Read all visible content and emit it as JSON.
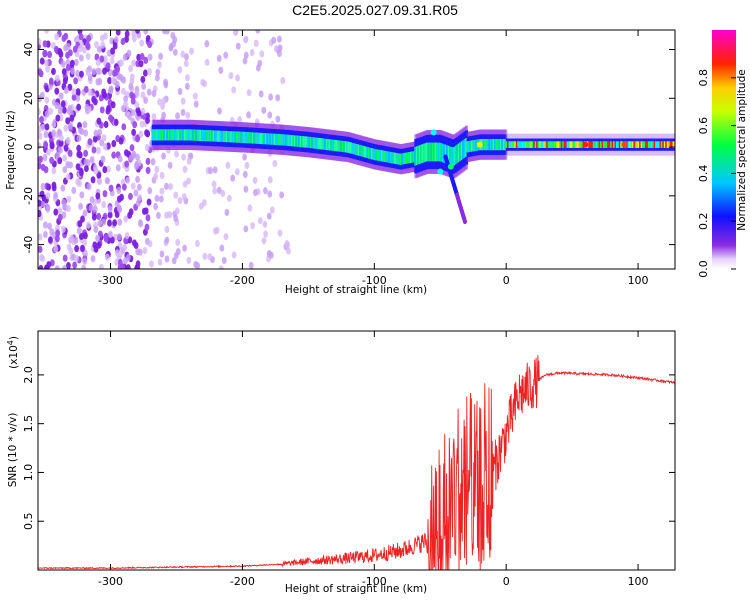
{
  "title": "C2E5.2025.027.09.31.R05",
  "chart_data": [
    {
      "type": "heatmap",
      "title": "C2E5.2025.027.09.31.R05",
      "xlabel": "Height of straight line (km)",
      "ylabel": "Frequency (Hz)",
      "xlim": [
        -355,
        128
      ],
      "ylim": [
        -50,
        48
      ],
      "xticks": [
        -300,
        -200,
        -100,
        0,
        100
      ],
      "yticks": [
        -40,
        -20,
        0,
        20,
        40
      ],
      "xtick_labels": [
        "-300",
        "-200",
        "-100",
        "0",
        "100"
      ],
      "ytick_labels": [
        "-40",
        "-20",
        "0",
        "20",
        "40"
      ],
      "colorbar": {
        "label": "Normalized spectral amplitude",
        "range": [
          0,
          1
        ],
        "ticks": [
          0.0,
          0.2,
          0.4,
          0.6,
          0.8
        ],
        "tick_labels": [
          "0.0",
          "0.2",
          "0.4",
          "0.6",
          "0.8"
        ],
        "colormap": [
          "#ffffff",
          "#8a2be2",
          "#0000ff",
          "#00ffff",
          "#00ff00",
          "#ffff00",
          "#ff0000",
          "#ff00ff"
        ]
      },
      "ridge": {
        "x": [
          -265,
          -240,
          -200,
          -170,
          -150,
          -120,
          -100,
          -80,
          -70,
          -60,
          -50,
          -40,
          -30,
          -20,
          0,
          50,
          100,
          128
        ],
        "center_hz": [
          5,
          5,
          4,
          3,
          2,
          0,
          -3,
          -5,
          -4,
          -2,
          -2,
          -4,
          0,
          1,
          1,
          1,
          1,
          1
        ]
      },
      "noise_region_km": [
        -355,
        -175
      ]
    },
    {
      "type": "line",
      "xlabel": "Height of straight line (km)",
      "ylabel": "SNR (10 * v/v)",
      "y_multiplier_label": "(x10",
      "y_multiplier_exp": "4",
      "xlim": [
        -355,
        128
      ],
      "ylim": [
        0,
        2.45
      ],
      "xticks": [
        -300,
        -200,
        -100,
        0,
        100
      ],
      "yticks": [
        0.5,
        1.0,
        1.5,
        2.0
      ],
      "xtick_labels": [
        "-300",
        "-200",
        "-100",
        "0",
        "100"
      ],
      "ytick_labels": [
        "0.5",
        "1.0",
        "1.5",
        "2.0"
      ],
      "series": [
        {
          "color": "#ee2222",
          "x": [
            -355,
            -300,
            -250,
            -200,
            -170,
            -150,
            -120,
            -100,
            -80,
            -60,
            -50,
            -40,
            -30,
            -20,
            -15,
            -10,
            0,
            10,
            20,
            30,
            40,
            60,
            80,
            100,
            128
          ],
          "y": [
            0.02,
            0.02,
            0.03,
            0.04,
            0.06,
            0.09,
            0.12,
            0.15,
            0.2,
            0.3,
            0.5,
            0.8,
            1.0,
            0.8,
            1.2,
            1.0,
            1.4,
            1.8,
            1.9,
            2.0,
            2.02,
            2.01,
            2.0,
            1.97,
            1.92
          ]
        }
      ]
    }
  ]
}
